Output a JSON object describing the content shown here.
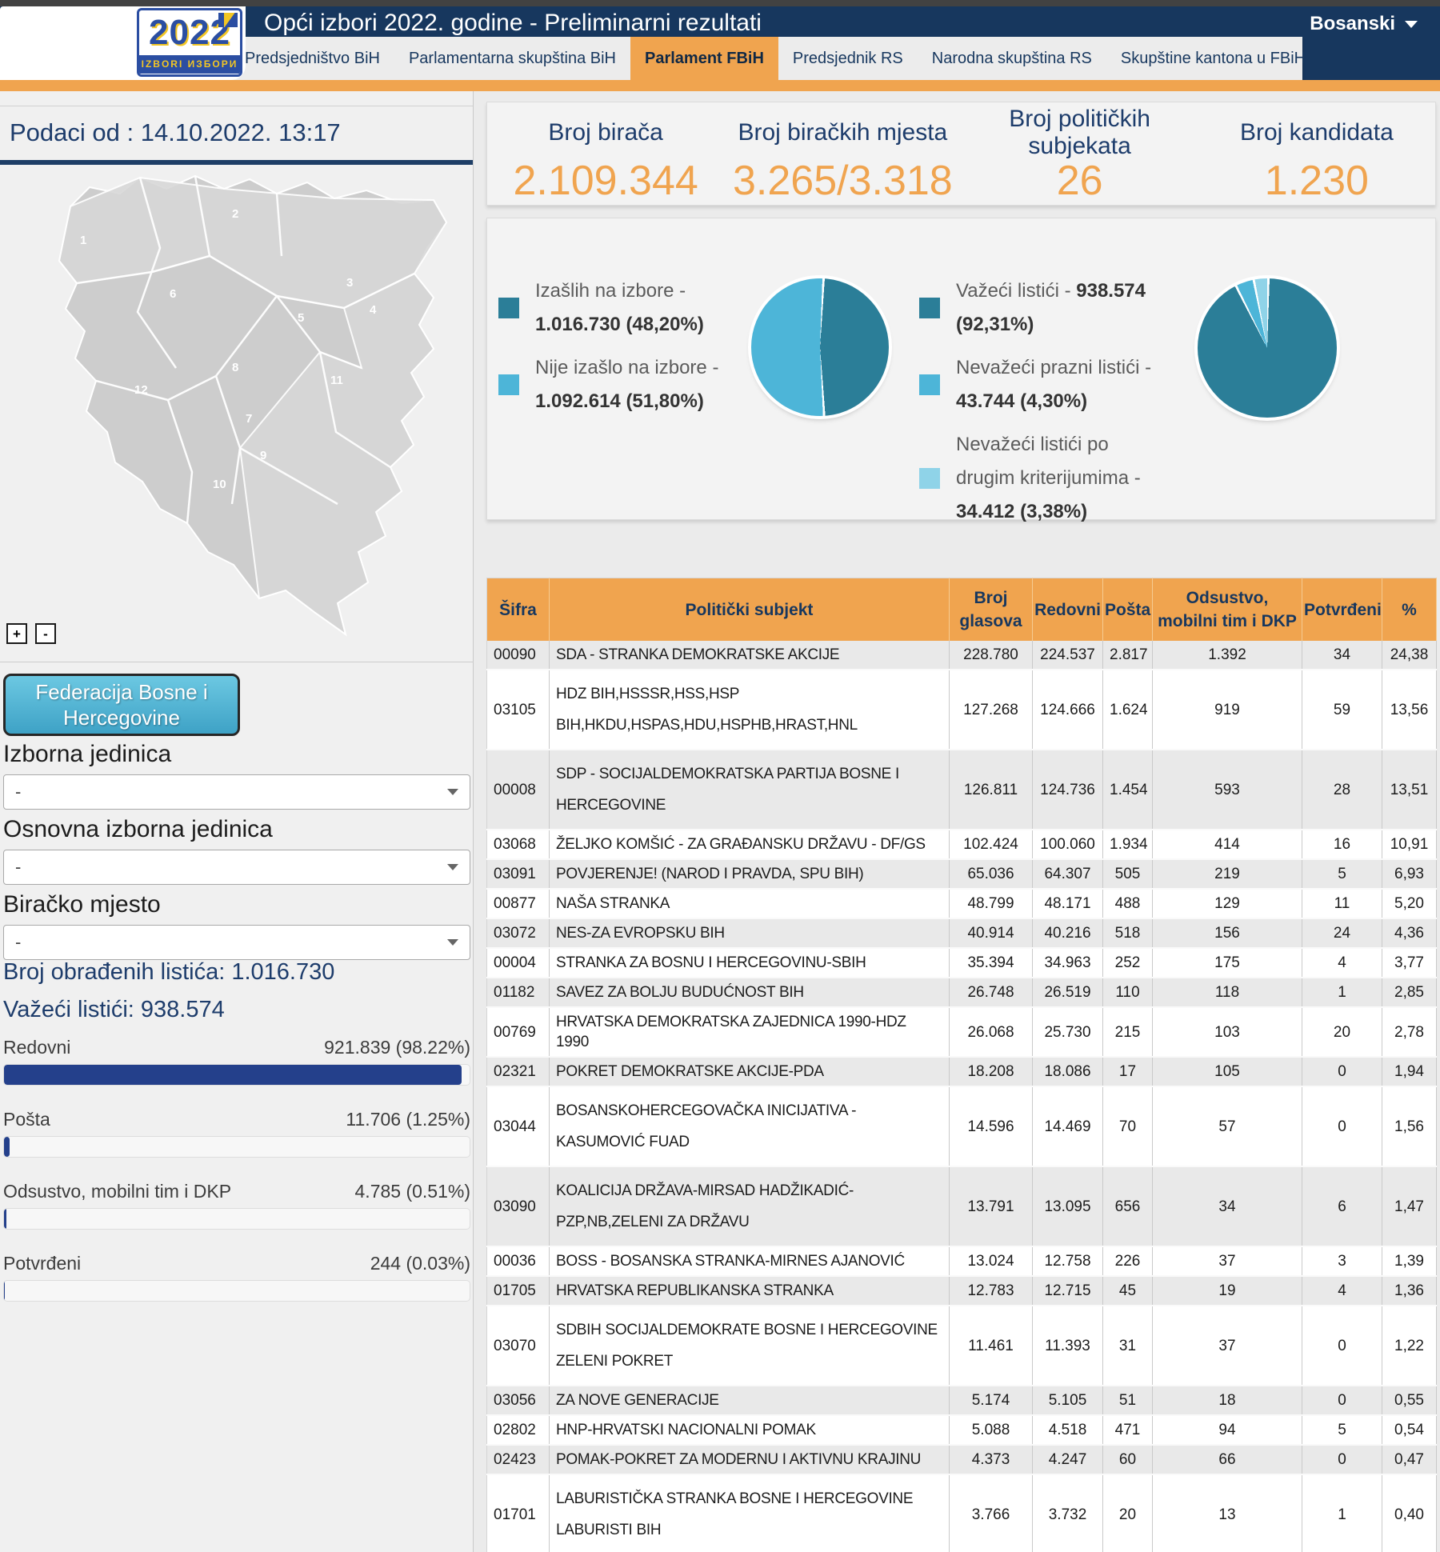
{
  "header": {
    "logo_year": "2022",
    "logo_caption": "IZBORI ИЗБОРИ",
    "title": "Opći izbori 2022. godine - Preliminarni rezultati",
    "language": "Bosanski",
    "tabs": [
      "Predsjedništvo BiH",
      "Parlamentarna skupština BiH",
      "Parlament FBiH",
      "Predsjednik RS",
      "Narodna skupština RS",
      "Skupštine kantona u FBiH"
    ],
    "active_tab": 2
  },
  "sidebar": {
    "data_as_of": "Podaci od : 14.10.2022. 13:17",
    "zoom_in": "+",
    "zoom_out": "-",
    "entity_button": "Federacija Bosne i Hercegovine",
    "filters": [
      {
        "name": "izborna-jedinica",
        "label": "Izborna jedinica",
        "value": "-"
      },
      {
        "name": "osnovna-izborna-jedinica",
        "label": "Osnovna izborna jedinica",
        "value": "-"
      },
      {
        "name": "biracko-mjesto",
        "label": "Biračko mjesto",
        "value": "-"
      }
    ],
    "processed_label": "Broj obrađenih listića: 1.016.730",
    "valid_label": "Važeći listići: 938.574",
    "bars": [
      {
        "label": "Redovni",
        "value": "921.839 (98.22%)",
        "pct": 98.22
      },
      {
        "label": "Pošta",
        "value": "11.706 (1.25%)",
        "pct": 1.25
      },
      {
        "label": "Odsustvo, mobilni tim i DKP",
        "value": "4.785 (0.51%)",
        "pct": 0.51
      },
      {
        "label": "Potvrđeni",
        "value": "244 (0.03%)",
        "pct": 0.03
      }
    ],
    "map_region_numbers": [
      "1",
      "2",
      "3",
      "4",
      "5",
      "6",
      "7",
      "8",
      "9",
      "10",
      "11",
      "12"
    ]
  },
  "stats": [
    {
      "label": "Broj birača",
      "value": "2.109.344"
    },
    {
      "label": "Broj biračkih mjesta",
      "value": "3.265/3.318"
    },
    {
      "label": "Broj političkih subjekata",
      "value": "26"
    },
    {
      "label": "Broj kandidata",
      "value": "1.230"
    }
  ],
  "chart_data": [
    {
      "type": "pie",
      "start_angle": 2,
      "slices": [
        {
          "label": "Izašlih na izbore -",
          "value": 1016730,
          "pct": 48.2,
          "display": "1.016.730 (48,20%)",
          "color": "#2b7e98"
        },
        {
          "label": "Nije izašlo na izbore -",
          "value": 1092614,
          "pct": 51.8,
          "display": "1.092.614 (51,80%)",
          "color": "#4db5d8"
        }
      ]
    },
    {
      "type": "pie",
      "start_angle": 0,
      "slices": [
        {
          "label": "Važeći listići -",
          "value": 938574,
          "pct": 92.31,
          "display": "938.574 (92,31%)",
          "color": "#2b7e98"
        },
        {
          "label": "Nevažeći prazni listići -",
          "value": 43744,
          "pct": 4.3,
          "display": "43.744 (4,30%)",
          "color": "#4db5d8"
        },
        {
          "label": "Nevažeći listići po drugim kriterijumima -",
          "value": 34412,
          "pct": 3.38,
          "display": "34.412 (3,38%)",
          "color": "#8fd3e8"
        }
      ]
    }
  ],
  "table": {
    "headers": [
      "Šifra",
      "Politički subjekt",
      "Broj glasova",
      "Redovni",
      "Pošta",
      "Odsustvo, mobilni tim i DKP",
      "Potvrđeni",
      "%"
    ],
    "rows": [
      [
        "00090",
        "SDA - STRANKA DEMOKRATSKE AKCIJE",
        "228.780",
        "224.537",
        "2.817",
        "1.392",
        "34",
        "24,38"
      ],
      [
        "03105",
        "HDZ BIH,HSSSR,HSS,HSP BIH,HKDU,HSPAS,HDU,HSPHB,HRAST,HNL",
        "127.268",
        "124.666",
        "1.624",
        "919",
        "59",
        "13,56"
      ],
      [
        "00008",
        "SDP - SOCIJALDEMOKRATSKA PARTIJA BOSNE I HERCEGOVINE",
        "126.811",
        "124.736",
        "1.454",
        "593",
        "28",
        "13,51"
      ],
      [
        "03068",
        "ŽELJKO KOMŠIĆ - ZA GRAĐANSKU DRŽAVU - DF/GS",
        "102.424",
        "100.060",
        "1.934",
        "414",
        "16",
        "10,91"
      ],
      [
        "03091",
        "POVJERENJE! (NAROD I PRAVDA, SPU BIH)",
        "65.036",
        "64.307",
        "505",
        "219",
        "5",
        "6,93"
      ],
      [
        "00877",
        "NAŠA STRANKA",
        "48.799",
        "48.171",
        "488",
        "129",
        "11",
        "5,20"
      ],
      [
        "03072",
        "NES-ZA EVROPSKU BIH",
        "40.914",
        "40.216",
        "518",
        "156",
        "24",
        "4,36"
      ],
      [
        "00004",
        "STRANKA ZA BOSNU I HERCEGOVINU-SBIH",
        "35.394",
        "34.963",
        "252",
        "175",
        "4",
        "3,77"
      ],
      [
        "01182",
        "SAVEZ ZA BOLJU BUDUĆNOST BIH",
        "26.748",
        "26.519",
        "110",
        "118",
        "1",
        "2,85"
      ],
      [
        "00769",
        "HRVATSKA DEMOKRATSKA ZAJEDNICA 1990-HDZ 1990",
        "26.068",
        "25.730",
        "215",
        "103",
        "20",
        "2,78"
      ],
      [
        "02321",
        "POKRET DEMOKRATSKE AKCIJE-PDA",
        "18.208",
        "18.086",
        "17",
        "105",
        "0",
        "1,94"
      ],
      [
        "03044",
        "BOSANSKOHERCEGOVAČKA INICIJATIVA - KASUMOVIĆ FUAD",
        "14.596",
        "14.469",
        "70",
        "57",
        "0",
        "1,56"
      ],
      [
        "03090",
        "KOALICIJA DRŽAVA-MIRSAD HADŽIKADIĆ- PZP,NB,ZELENI ZA DRŽAVU",
        "13.791",
        "13.095",
        "656",
        "34",
        "6",
        "1,47"
      ],
      [
        "00036",
        "BOSS - BOSANSKA STRANKA-MIRNES AJANOVIĆ",
        "13.024",
        "12.758",
        "226",
        "37",
        "3",
        "1,39"
      ],
      [
        "01705",
        "HRVATSKA REPUBLIKANSKA STRANKA",
        "12.783",
        "12.715",
        "45",
        "19",
        "4",
        "1,36"
      ],
      [
        "03070",
        "SDBIH SOCIJALDEMOKRATE BOSNE I HERCEGOVINE ZELENI POKRET",
        "11.461",
        "11.393",
        "31",
        "37",
        "0",
        "1,22"
      ],
      [
        "03056",
        "ZA NOVE GENERACIJE",
        "5.174",
        "5.105",
        "51",
        "18",
        "0",
        "0,55"
      ],
      [
        "02802",
        "HNP-HRVATSKI NACIONALNI POMAK",
        "5.088",
        "4.518",
        "471",
        "94",
        "5",
        "0,54"
      ],
      [
        "02423",
        "POMAK-POKRET ZA MODERNU I AKTIVNU KRAJINU",
        "4.373",
        "4.247",
        "60",
        "66",
        "0",
        "0,47"
      ],
      [
        "01701",
        "LABURISTIČKA STRANKA BOSNE I HERCEGOVINE LABURISTI BIH",
        "3.766",
        "3.732",
        "20",
        "13",
        "1",
        "0,40"
      ],
      [
        "",
        "",
        "",
        "",
        "",
        "",
        "",
        ""
      ]
    ]
  }
}
